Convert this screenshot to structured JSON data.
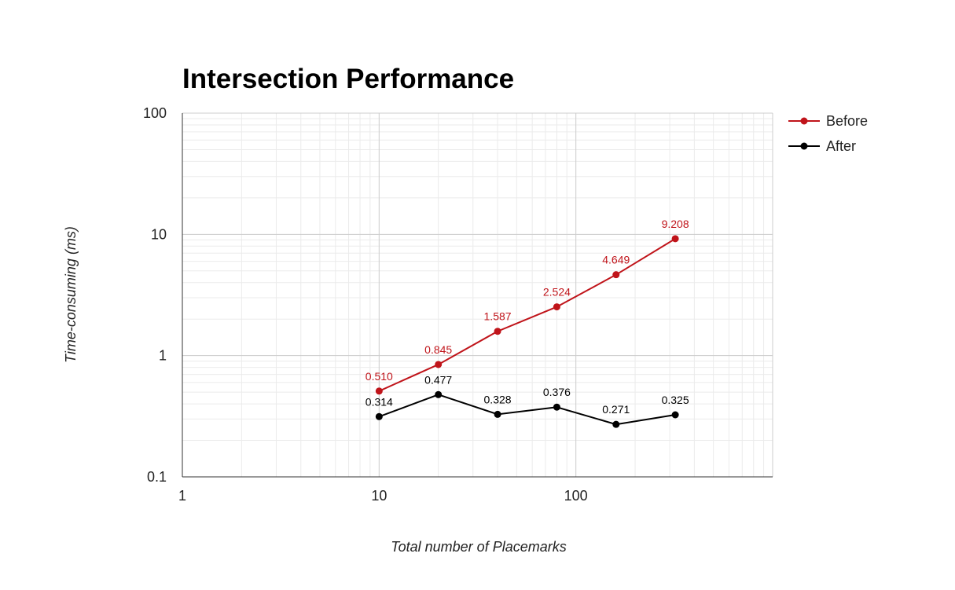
{
  "chart_data": {
    "type": "line",
    "title": "Intersection Performance",
    "xlabel": "Total number of Placemarks",
    "ylabel": "Time-consuming (ms)",
    "x_scale": "log",
    "y_scale": "log",
    "xlim": [
      1,
      1000
    ],
    "ylim": [
      0.1,
      100
    ],
    "x_ticks": [
      "1",
      "10",
      "100"
    ],
    "y_ticks": [
      "100",
      "10",
      "1",
      "0.1"
    ],
    "grid": true,
    "legend_position": "right",
    "x": [
      10,
      20,
      40,
      80,
      160,
      320
    ],
    "series": [
      {
        "name": "Before",
        "color": "#c0141a",
        "values": [
          0.51,
          0.845,
          1.587,
          2.524,
          4.649,
          9.208
        ],
        "labels": [
          "0.510",
          "0.845",
          "1.587",
          "2.524",
          "4.649",
          "9.208"
        ]
      },
      {
        "name": "After",
        "color": "#000000",
        "values": [
          0.314,
          0.477,
          0.328,
          0.376,
          0.271,
          0.325
        ],
        "labels": [
          "0.314",
          "0.477",
          "0.328",
          "0.376",
          "0.271",
          "0.325"
        ]
      }
    ]
  }
}
